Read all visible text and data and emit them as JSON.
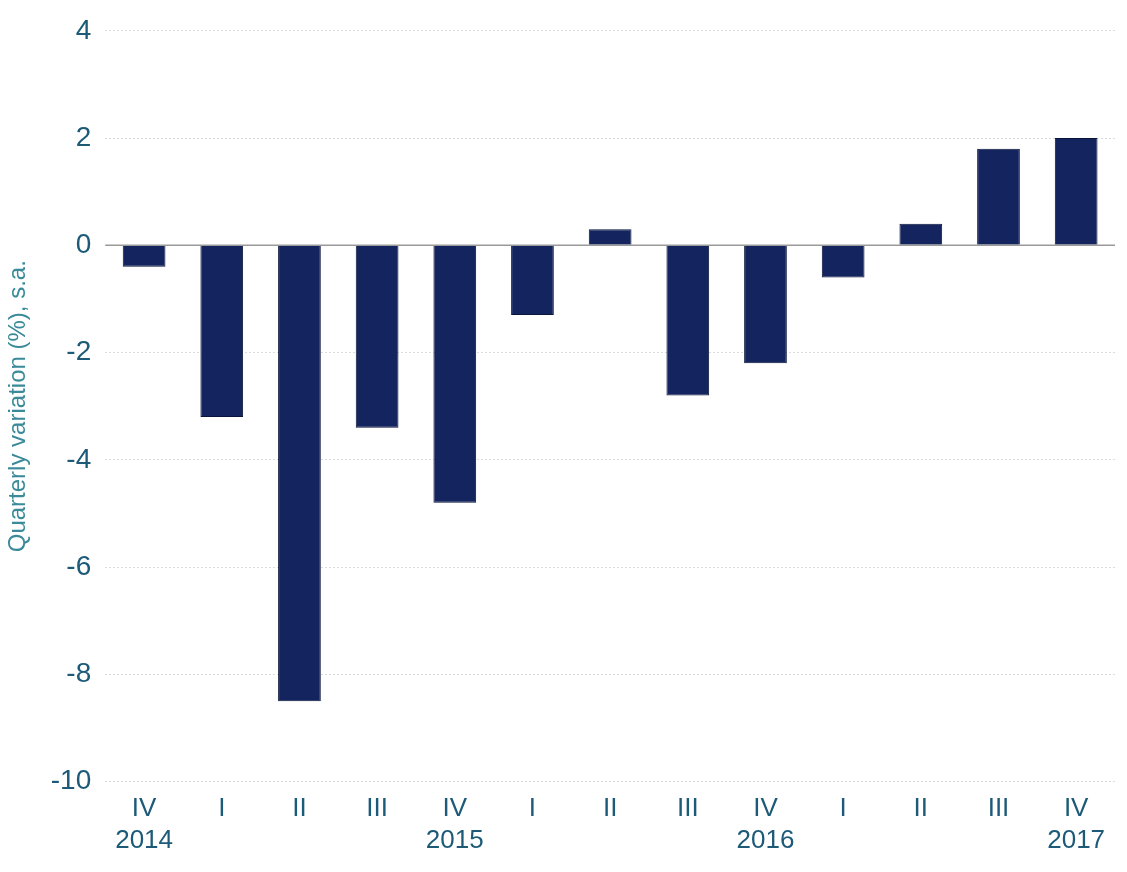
{
  "chart_data": {
    "type": "bar",
    "ylabel": "Quarterly variation (%), s.a.",
    "categories": [
      "IV\n2014",
      "I",
      "II",
      "III",
      "IV\n2015",
      "I",
      "II",
      "III",
      "IV\n2016",
      "I",
      "II",
      "III",
      "IV\n2017"
    ],
    "values": [
      -0.4,
      -3.2,
      -8.5,
      -3.4,
      -4.8,
      -1.3,
      0.3,
      -2.8,
      -2.2,
      -0.6,
      0.4,
      1.8,
      2.0
    ],
    "color": "#14245e",
    "ylim": [
      -10,
      4
    ],
    "yticks": [
      -10,
      -8,
      -6,
      -4,
      -2,
      0,
      2,
      4
    ],
    "grid": "y",
    "legend": false,
    "ref_lines": [
      {
        "axis": "y",
        "value": 0,
        "color": "#9a9a9a",
        "line_style": "solid"
      }
    ]
  }
}
